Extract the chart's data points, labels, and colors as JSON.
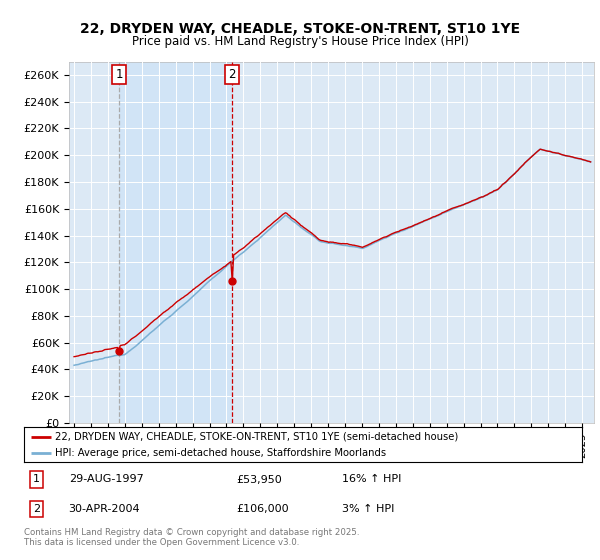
{
  "title": "22, DRYDEN WAY, CHEADLE, STOKE-ON-TRENT, ST10 1YE",
  "subtitle": "Price paid vs. HM Land Registry's House Price Index (HPI)",
  "ylabel_ticks": [
    "£0",
    "£20K",
    "£40K",
    "£60K",
    "£80K",
    "£100K",
    "£120K",
    "£140K",
    "£160K",
    "£180K",
    "£200K",
    "£220K",
    "£240K",
    "£260K"
  ],
  "ytick_values": [
    0,
    20000,
    40000,
    60000,
    80000,
    100000,
    120000,
    140000,
    160000,
    180000,
    200000,
    220000,
    240000,
    260000
  ],
  "ymax": 270000,
  "xmin": 1994.7,
  "xmax": 2025.7,
  "sale1_year": 1997.66,
  "sale1_price": 53950,
  "sale2_year": 2004.33,
  "sale2_price": 106000,
  "legend_line1": "22, DRYDEN WAY, CHEADLE, STOKE-ON-TRENT, ST10 1YE (semi-detached house)",
  "legend_line2": "HPI: Average price, semi-detached house, Staffordshire Moorlands",
  "table_row1": [
    "1",
    "29-AUG-1997",
    "£53,950",
    "16% ↑ HPI"
  ],
  "table_row2": [
    "2",
    "30-APR-2004",
    "£106,000",
    "3% ↑ HPI"
  ],
  "footer": "Contains HM Land Registry data © Crown copyright and database right 2025.\nThis data is licensed under the Open Government Licence v3.0.",
  "line_color_red": "#cc0000",
  "line_color_blue": "#7ab0d4",
  "vline1_color": "#aaaaaa",
  "vline2_color": "#cc0000",
  "shading_color": "#d0e4f7",
  "bg_color": "#dce9f5",
  "grid_color": "#ffffff"
}
